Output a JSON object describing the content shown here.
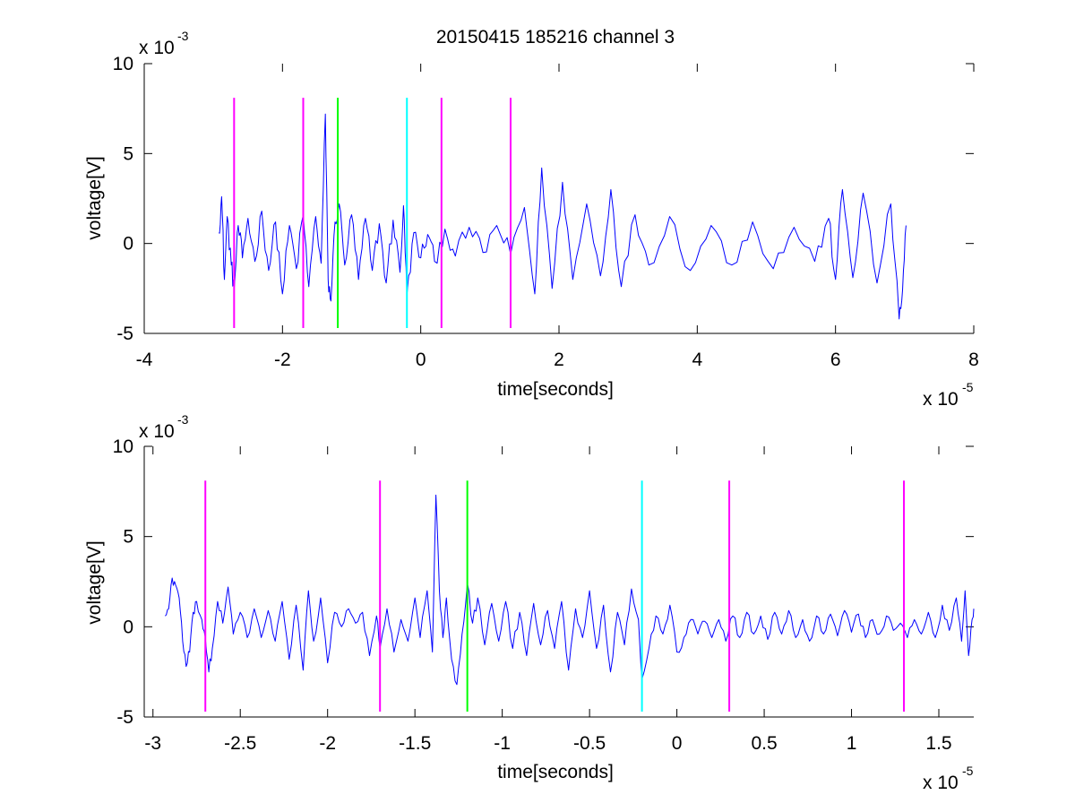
{
  "figure_title": "20150415 185216 channel 3",
  "chart_data": [
    {
      "type": "line",
      "title": "20150415 185216 channel 3",
      "xlabel": "time[seconds]",
      "ylabel": "voltage[V]",
      "x_exponent_label": "x 10",
      "x_exponent": "-5",
      "y_exponent_label": "x 10",
      "y_exponent": "-3",
      "xlim": [
        -4,
        8
      ],
      "ylim": [
        -5,
        10
      ],
      "xticks": [
        -4,
        -2,
        0,
        2,
        4,
        6,
        8
      ],
      "xtick_labels": [
        "-4",
        "-2",
        "0",
        "2",
        "4",
        "6",
        "8"
      ],
      "yticks": [
        -5,
        0,
        5,
        10
      ],
      "ytick_labels": [
        "-5",
        "0",
        "5",
        "10"
      ],
      "grid": false,
      "series": [
        {
          "color": "#0000ff",
          "x_range": [
            -2.92,
            7.02
          ],
          "points": [
            [
              -2.92,
              0.6
            ],
            [
              -2.88,
              2.6
            ],
            [
              -2.84,
              -2.0
            ],
            [
              -2.8,
              1.5
            ],
            [
              -2.74,
              -1.2
            ],
            [
              -2.7,
              -2.6
            ],
            [
              -2.64,
              1.0
            ],
            [
              -2.58,
              -0.8
            ],
            [
              -2.5,
              1.4
            ],
            [
              -2.4,
              -1.0
            ],
            [
              -2.3,
              1.8
            ],
            [
              -2.2,
              -1.5
            ],
            [
              -2.1,
              1.2
            ],
            [
              -2.0,
              -2.8
            ],
            [
              -1.9,
              1.0
            ],
            [
              -1.8,
              -1.4
            ],
            [
              -1.7,
              1.6
            ],
            [
              -1.62,
              -2.4
            ],
            [
              -1.52,
              1.5
            ],
            [
              -1.44,
              -1.1
            ],
            [
              -1.38,
              7.2
            ],
            [
              -1.34,
              -2.0
            ],
            [
              -1.3,
              -3.2
            ],
            [
              -1.24,
              1.2
            ],
            [
              -1.18,
              2.2
            ],
            [
              -1.1,
              -1.2
            ],
            [
              -1.0,
              1.6
            ],
            [
              -0.9,
              -2.0
            ],
            [
              -0.8,
              1.4
            ],
            [
              -0.7,
              -1.5
            ],
            [
              -0.6,
              1.1
            ],
            [
              -0.5,
              -2.2
            ],
            [
              -0.4,
              1.3
            ],
            [
              -0.3,
              -1.6
            ],
            [
              -0.25,
              2.1
            ],
            [
              -0.2,
              -2.9
            ],
            [
              -0.1,
              0.6
            ],
            [
              0.0,
              -0.8
            ],
            [
              0.1,
              0.5
            ],
            [
              0.2,
              -1.0
            ],
            [
              0.35,
              0.8
            ],
            [
              0.5,
              -0.7
            ],
            [
              0.7,
              0.9
            ],
            [
              0.9,
              -0.5
            ],
            [
              1.1,
              1.0
            ],
            [
              1.3,
              -0.6
            ],
            [
              1.5,
              2.0
            ],
            [
              1.65,
              -2.8
            ],
            [
              1.75,
              4.2
            ],
            [
              1.9,
              -2.5
            ],
            [
              2.05,
              3.4
            ],
            [
              2.2,
              -2.0
            ],
            [
              2.4,
              2.2
            ],
            [
              2.6,
              -1.8
            ],
            [
              2.75,
              3.0
            ],
            [
              2.9,
              -2.4
            ],
            [
              3.1,
              1.6
            ],
            [
              3.3,
              -1.2
            ],
            [
              3.6,
              1.5
            ],
            [
              3.9,
              -1.5
            ],
            [
              4.2,
              1.0
            ],
            [
              4.5,
              -1.2
            ],
            [
              4.8,
              1.2
            ],
            [
              5.1,
              -1.4
            ],
            [
              5.4,
              0.9
            ],
            [
              5.7,
              -1.0
            ],
            [
              5.9,
              1.4
            ],
            [
              6.0,
              -2.0
            ],
            [
              6.1,
              3.0
            ],
            [
              6.25,
              -1.9
            ],
            [
              6.4,
              2.8
            ],
            [
              6.6,
              -2.2
            ],
            [
              6.8,
              2.2
            ],
            [
              6.92,
              -4.2
            ],
            [
              6.97,
              -2.6
            ],
            [
              7.02,
              1.0
            ]
          ]
        }
      ],
      "vlines": [
        {
          "x": -2.7,
          "color": "#ff00ff",
          "y_range": [
            -4.7,
            8.1
          ]
        },
        {
          "x": -1.7,
          "color": "#ff00ff",
          "y_range": [
            -4.7,
            8.1
          ]
        },
        {
          "x": -1.2,
          "color": "#00ff00",
          "y_range": [
            -4.7,
            8.1
          ]
        },
        {
          "x": -0.2,
          "color": "#00ffff",
          "y_range": [
            -4.7,
            8.1
          ]
        },
        {
          "x": 0.3,
          "color": "#ff00ff",
          "y_range": [
            -4.7,
            8.1
          ]
        },
        {
          "x": 1.3,
          "color": "#ff00ff",
          "y_range": [
            -4.7,
            8.1
          ]
        }
      ]
    },
    {
      "type": "line",
      "title": "",
      "xlabel": "time[seconds]",
      "ylabel": "voltage[V]",
      "x_exponent_label": "x 10",
      "x_exponent": "-5",
      "y_exponent_label": "x 10",
      "y_exponent": "-3",
      "xlim": [
        -3.05,
        1.7
      ],
      "ylim": [
        -5,
        10
      ],
      "xticks": [
        -3,
        -2.5,
        -2,
        -1.5,
        -1,
        -0.5,
        0,
        0.5,
        1,
        1.5
      ],
      "xtick_labels": [
        "-3",
        "-2.5",
        "-2",
        "-1.5",
        "-1",
        "-0.5",
        "0",
        "0.5",
        "1",
        "1.5"
      ],
      "yticks": [
        -5,
        0,
        5,
        10
      ],
      "ytick_labels": [
        "-5",
        "0",
        "5",
        "10"
      ],
      "grid": false,
      "series": [
        {
          "color": "#0000ff",
          "x_range": [
            -2.93,
            1.7
          ],
          "points": [
            [
              -2.93,
              0.6
            ],
            [
              -2.91,
              1.0
            ],
            [
              -2.89,
              2.7
            ],
            [
              -2.87,
              2.3
            ],
            [
              -2.85,
              1.6
            ],
            [
              -2.83,
              -0.8
            ],
            [
              -2.81,
              -2.2
            ],
            [
              -2.79,
              -1.4
            ],
            [
              -2.77,
              0.8
            ],
            [
              -2.75,
              1.4
            ],
            [
              -2.72,
              0.4
            ],
            [
              -2.7,
              -0.6
            ],
            [
              -2.68,
              -2.5
            ],
            [
              -2.66,
              -1.2
            ],
            [
              -2.63,
              1.4
            ],
            [
              -2.6,
              0.2
            ],
            [
              -2.57,
              2.2
            ],
            [
              -2.54,
              -0.4
            ],
            [
              -2.5,
              0.8
            ],
            [
              -2.46,
              -0.6
            ],
            [
              -2.42,
              1.0
            ],
            [
              -2.38,
              -0.6
            ],
            [
              -2.34,
              0.9
            ],
            [
              -2.3,
              -0.8
            ],
            [
              -2.26,
              1.4
            ],
            [
              -2.22,
              -1.8
            ],
            [
              -2.18,
              1.2
            ],
            [
              -2.14,
              -2.4
            ],
            [
              -2.11,
              2.0
            ],
            [
              -2.08,
              -0.8
            ],
            [
              -2.04,
              1.6
            ],
            [
              -2.0,
              -2.0
            ],
            [
              -1.96,
              0.8
            ],
            [
              -1.92,
              0.0
            ],
            [
              -1.88,
              1.0
            ],
            [
              -1.84,
              0.2
            ],
            [
              -1.8,
              0.8
            ],
            [
              -1.76,
              -1.6
            ],
            [
              -1.72,
              0.6
            ],
            [
              -1.7,
              -1.2
            ],
            [
              -1.66,
              1.0
            ],
            [
              -1.62,
              -1.4
            ],
            [
              -1.58,
              0.4
            ],
            [
              -1.54,
              -0.8
            ],
            [
              -1.5,
              1.6
            ],
            [
              -1.47,
              -0.6
            ],
            [
              -1.43,
              2.0
            ],
            [
              -1.4,
              -1.4
            ],
            [
              -1.38,
              7.3
            ],
            [
              -1.36,
              2.0
            ],
            [
              -1.34,
              -0.6
            ],
            [
              -1.32,
              1.6
            ],
            [
              -1.29,
              -1.8
            ],
            [
              -1.26,
              -3.2
            ],
            [
              -1.23,
              -0.4
            ],
            [
              -1.2,
              2.4
            ],
            [
              -1.17,
              0.2
            ],
            [
              -1.14,
              1.6
            ],
            [
              -1.1,
              -1.0
            ],
            [
              -1.06,
              1.3
            ],
            [
              -1.02,
              -0.8
            ],
            [
              -0.98,
              1.4
            ],
            [
              -0.94,
              -1.2
            ],
            [
              -0.9,
              0.8
            ],
            [
              -0.86,
              -1.6
            ],
            [
              -0.82,
              1.3
            ],
            [
              -0.78,
              -1.0
            ],
            [
              -0.74,
              0.9
            ],
            [
              -0.7,
              -1.2
            ],
            [
              -0.66,
              1.4
            ],
            [
              -0.62,
              -2.4
            ],
            [
              -0.58,
              1.0
            ],
            [
              -0.54,
              -0.6
            ],
            [
              -0.5,
              2.0
            ],
            [
              -0.46,
              -1.2
            ],
            [
              -0.42,
              1.2
            ],
            [
              -0.38,
              -2.5
            ],
            [
              -0.34,
              0.8
            ],
            [
              -0.3,
              -1.0
            ],
            [
              -0.26,
              2.1
            ],
            [
              -0.22,
              0.4
            ],
            [
              -0.2,
              -2.9
            ],
            [
              -0.16,
              -1.2
            ],
            [
              -0.12,
              0.6
            ],
            [
              -0.08,
              -0.4
            ],
            [
              -0.04,
              1.2
            ],
            [
              0.0,
              -1.4
            ],
            [
              0.04,
              -0.6
            ],
            [
              0.08,
              0.4
            ],
            [
              0.12,
              -0.4
            ],
            [
              0.16,
              0.3
            ],
            [
              0.2,
              -0.6
            ],
            [
              0.24,
              0.4
            ],
            [
              0.28,
              -0.8
            ],
            [
              0.32,
              0.6
            ],
            [
              0.36,
              -0.6
            ],
            [
              0.4,
              0.8
            ],
            [
              0.44,
              -0.4
            ],
            [
              0.48,
              0.6
            ],
            [
              0.52,
              -0.7
            ],
            [
              0.56,
              0.8
            ],
            [
              0.6,
              -0.4
            ],
            [
              0.64,
              0.9
            ],
            [
              0.68,
              -0.6
            ],
            [
              0.72,
              0.4
            ],
            [
              0.76,
              -0.8
            ],
            [
              0.8,
              0.6
            ],
            [
              0.84,
              -0.4
            ],
            [
              0.88,
              0.7
            ],
            [
              0.92,
              -0.5
            ],
            [
              0.96,
              0.9
            ],
            [
              1.0,
              -0.3
            ],
            [
              1.04,
              0.7
            ],
            [
              1.08,
              -0.6
            ],
            [
              1.12,
              0.4
            ],
            [
              1.16,
              -0.4
            ],
            [
              1.2,
              0.6
            ],
            [
              1.24,
              -0.2
            ],
            [
              1.28,
              0.2
            ],
            [
              1.32,
              -0.6
            ],
            [
              1.36,
              0.4
            ],
            [
              1.4,
              -0.4
            ],
            [
              1.44,
              0.8
            ],
            [
              1.48,
              -0.6
            ],
            [
              1.52,
              1.2
            ],
            [
              1.56,
              -0.2
            ],
            [
              1.6,
              1.6
            ],
            [
              1.63,
              -0.8
            ],
            [
              1.65,
              2.0
            ],
            [
              1.67,
              -1.6
            ],
            [
              1.69,
              0.4
            ],
            [
              1.7,
              1.0
            ]
          ]
        }
      ],
      "vlines": [
        {
          "x": -2.7,
          "color": "#ff00ff",
          "y_range": [
            -4.7,
            8.1
          ]
        },
        {
          "x": -1.7,
          "color": "#ff00ff",
          "y_range": [
            -4.7,
            8.1
          ]
        },
        {
          "x": -1.2,
          "color": "#00ff00",
          "y_range": [
            -4.7,
            8.1
          ]
        },
        {
          "x": -0.2,
          "color": "#00ffff",
          "y_range": [
            -4.7,
            8.1
          ]
        },
        {
          "x": 0.3,
          "color": "#ff00ff",
          "y_range": [
            -4.7,
            8.1
          ]
        },
        {
          "x": 1.3,
          "color": "#ff00ff",
          "y_range": [
            -4.7,
            8.1
          ]
        }
      ]
    }
  ]
}
